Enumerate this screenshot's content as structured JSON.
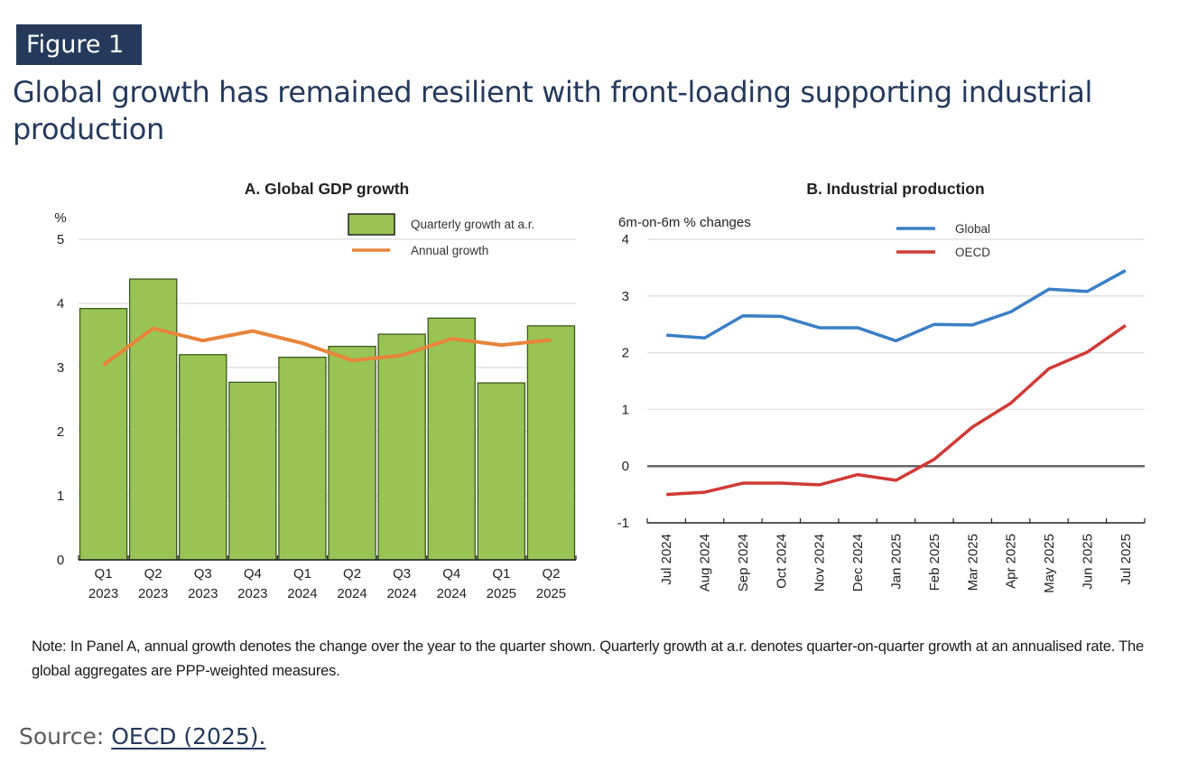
{
  "figure": {
    "badge": "Figure 1",
    "title": "Global growth has remained resilient with front-loading supporting industrial production",
    "note": "Note: In Panel A, annual growth denotes the change over the year to the quarter shown. Quarterly growth at a.r. denotes quarter-on-quarter growth at an annualised rate. The global aggregates are PPP-weighted measures.",
    "source_label": "Source:",
    "source_link": "OECD (2025)."
  },
  "colors": {
    "header": "#253a5b",
    "bar_fill": "#99c455",
    "bar_stroke": "#3d5a1e",
    "annual_line": "#e8843a",
    "global_line": "#3a7fc6",
    "oecd_line": "#d03a36"
  },
  "chart_data": [
    {
      "type": "bar",
      "title": "A. Global GDP growth",
      "ylabel": "%",
      "xlabel": "",
      "ylim": [
        0,
        5
      ],
      "yticks": [
        "0",
        "1",
        "2",
        "3",
        "4",
        "5"
      ],
      "grid": true,
      "legend_position": "top-right",
      "categories": [
        {
          "q": "Q1",
          "y": "2023"
        },
        {
          "q": "Q2",
          "y": "2023"
        },
        {
          "q": "Q3",
          "y": "2023"
        },
        {
          "q": "Q4",
          "y": "2023"
        },
        {
          "q": "Q1",
          "y": "2024"
        },
        {
          "q": "Q2",
          "y": "2024"
        },
        {
          "q": "Q3",
          "y": "2024"
        },
        {
          "q": "Q4",
          "y": "2024"
        },
        {
          "q": "Q1",
          "y": "2025"
        },
        {
          "q": "Q2",
          "y": "2025"
        }
      ],
      "series": [
        {
          "name": "Quarterly growth at a.r.",
          "kind": "bar",
          "values": [
            3.92,
            4.38,
            3.2,
            2.77,
            3.16,
            3.33,
            3.52,
            3.77,
            2.76,
            3.65
          ]
        },
        {
          "name": "Annual growth",
          "kind": "line",
          "values": [
            3.04,
            3.61,
            3.42,
            3.57,
            3.38,
            3.11,
            3.19,
            3.45,
            3.35,
            3.43
          ]
        }
      ]
    },
    {
      "type": "line",
      "title": "B. Industrial production",
      "ylabel": "6m-on-6m % changes",
      "xlabel": "",
      "ylim": [
        -1,
        4
      ],
      "yticks": [
        "-1",
        "0",
        "1",
        "2",
        "3",
        "4"
      ],
      "grid": true,
      "legend_position": "top-right",
      "categories": [
        "Jul 2024",
        "Aug 2024",
        "Sep 2024",
        "Oct 2024",
        "Nov 2024",
        "Dec 2024",
        "Jan 2025",
        "Feb 2025",
        "Mar 2025",
        "Apr 2025",
        "May 2025",
        "Jun 2025",
        "Jul 2025"
      ],
      "series": [
        {
          "name": "Global",
          "values": [
            2.31,
            2.26,
            2.65,
            2.64,
            2.44,
            2.44,
            2.21,
            2.5,
            2.49,
            2.72,
            3.12,
            3.08,
            3.45
          ]
        },
        {
          "name": "OECD",
          "values": [
            -0.5,
            -0.46,
            -0.3,
            -0.3,
            -0.33,
            -0.15,
            -0.25,
            0.12,
            0.69,
            1.11,
            1.72,
            2.01,
            2.48
          ]
        }
      ]
    }
  ]
}
